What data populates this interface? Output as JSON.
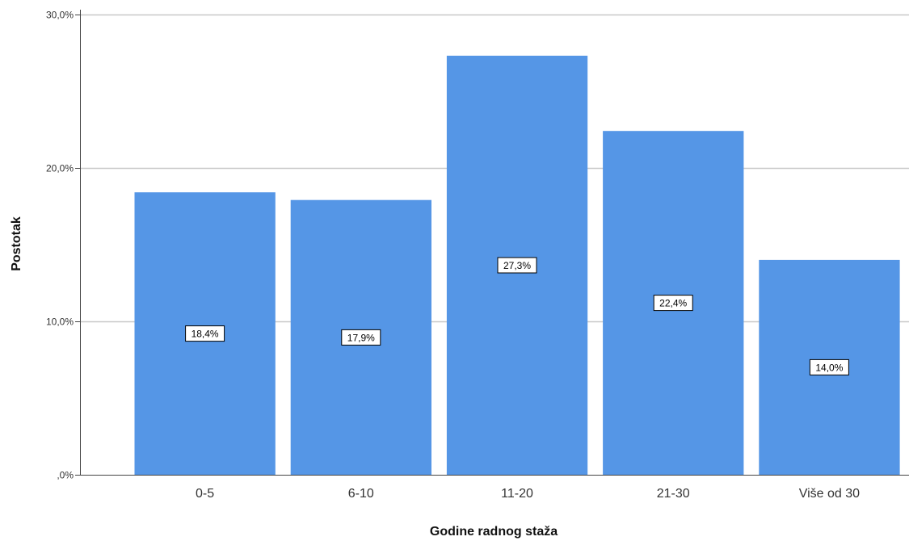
{
  "chart_data": {
    "type": "bar",
    "title": "",
    "xlabel": "Godine radnog staža",
    "ylabel": "Postotak",
    "categories": [
      "0-5",
      "6-10",
      "11-20",
      "21-30",
      "Više od 30"
    ],
    "values": [
      18.4,
      17.9,
      27.3,
      22.4,
      14.0
    ],
    "data_labels": [
      "18,4%",
      "17,9%",
      "27,3%",
      "22,4%",
      "14,0%"
    ],
    "ylim": [
      0,
      30.3
    ],
    "yticks": [
      0,
      10,
      20,
      30
    ],
    "ytick_labels": [
      ",0%",
      "10,0%",
      "20,0%",
      "30,0%"
    ],
    "grid": true,
    "legend": "none",
    "colors": {
      "bar": "#5596e6",
      "grid": "#c8c8c8",
      "axis": "#444444"
    }
  }
}
